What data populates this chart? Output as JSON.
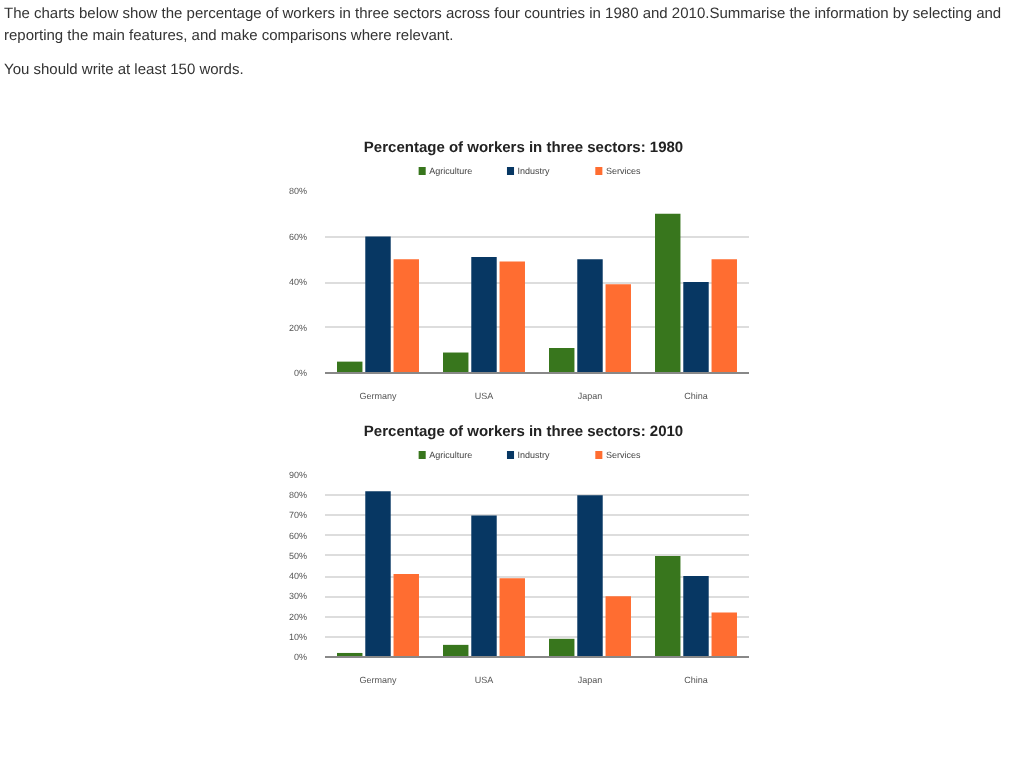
{
  "chart_data": [
    {
      "type": "bar",
      "title": "Percentage of workers in three sectors: 1980",
      "annotations": [
        "The charts below show the percentage of workers in three sectors across four countries in 1980 and 2010.Summarise the information by selecting and reporting the main features, and make comparisons where relevant.",
        "You should write at least 150 words."
      ],
      "categories": [
        "Germany",
        "USA",
        "Japan",
        "China"
      ],
      "series": [
        {
          "name": "Agriculture",
          "color": "#38761d",
          "values": [
            5,
            9,
            11,
            70
          ]
        },
        {
          "name": "Industry",
          "color": "#073763",
          "values": [
            60,
            51,
            50,
            40
          ]
        },
        {
          "name": "Services",
          "color": "#ff6d31",
          "values": [
            50,
            49,
            39,
            50
          ]
        }
      ],
      "ylim": [
        0,
        80
      ],
      "yticks": [
        {
          "value": 0,
          "label": "0%"
        },
        {
          "value": 20,
          "label": "20%"
        },
        {
          "value": 40,
          "label": "40%"
        },
        {
          "value": 60,
          "label": "60%"
        },
        {
          "value": 80,
          "label": "80%"
        }
      ],
      "grid": "y",
      "legend": "top"
    },
    {
      "type": "bar",
      "title": "Percentage of workers in three sectors: 2010",
      "categories": [
        "Germany",
        "USA",
        "Japan",
        "China"
      ],
      "series": [
        {
          "name": "Agriculture",
          "color": "#38761d",
          "values": [
            2,
            6,
            9,
            50
          ]
        },
        {
          "name": "Industry",
          "color": "#073763",
          "values": [
            82,
            70,
            80,
            40
          ]
        },
        {
          "name": "Services",
          "color": "#ff6d31",
          "values": [
            41,
            39,
            30,
            22
          ]
        }
      ],
      "ylim": [
        0,
        90
      ],
      "yticks": [
        {
          "value": 0,
          "label": "0%"
        },
        {
          "value": 10,
          "label": "10%"
        },
        {
          "value": 20,
          "label": "20%"
        },
        {
          "value": 30,
          "label": "30%"
        },
        {
          "value": 40,
          "label": "40%"
        },
        {
          "value": 50,
          "label": "50%"
        },
        {
          "value": 60,
          "label": "60%"
        },
        {
          "value": 70,
          "label": "70%"
        },
        {
          "value": 80,
          "label": "80%"
        },
        {
          "value": 90,
          "label": "90%"
        }
      ],
      "grid": "y",
      "legend": "top"
    }
  ]
}
